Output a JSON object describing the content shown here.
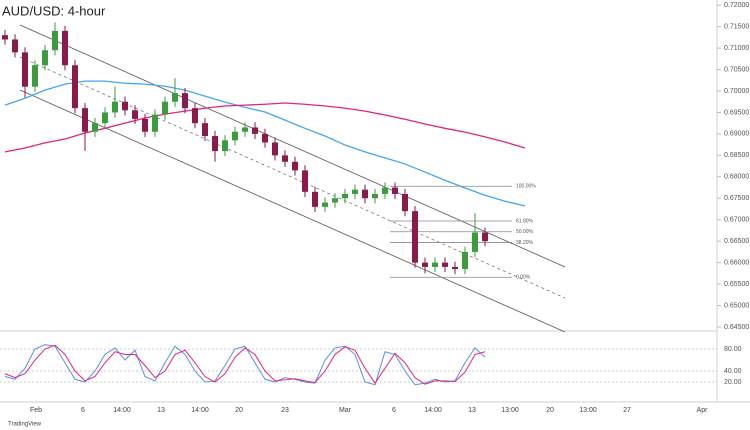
{
  "chart_data": {
    "type": "candlestick",
    "title": "AUD/USD: 4-hour",
    "up_color": "#3d9b3d",
    "down_color": "#8b1a4a",
    "candles": {
      "open": [
        0.713,
        0.712,
        0.709,
        0.701,
        0.706,
        0.7095,
        0.714,
        0.706,
        0.696,
        0.6905,
        0.6925,
        0.695,
        0.6975,
        0.6955,
        0.6935,
        0.6905,
        0.6945,
        0.6975,
        0.6995,
        0.696,
        0.6925,
        0.6895,
        0.686,
        0.6885,
        0.6905,
        0.6915,
        0.69,
        0.688,
        0.685,
        0.6835,
        0.6815,
        0.6765,
        0.673,
        0.674,
        0.675,
        0.676,
        0.677,
        0.675,
        0.676,
        0.6775,
        0.676,
        0.672,
        0.66,
        0.659,
        0.66,
        0.659,
        0.6585,
        0.6625,
        0.667
      ],
      "high": [
        0.7142,
        0.7132,
        0.7102,
        0.7072,
        0.7107,
        0.716,
        0.7152,
        0.7072,
        0.6972,
        0.6937,
        0.6962,
        0.701,
        0.6987,
        0.6967,
        0.6947,
        0.6957,
        0.6987,
        0.703,
        0.7007,
        0.6972,
        0.6937,
        0.6907,
        0.6897,
        0.6917,
        0.6927,
        0.6927,
        0.6912,
        0.6892,
        0.6862,
        0.6847,
        0.6827,
        0.6777,
        0.6752,
        0.6762,
        0.6772,
        0.6782,
        0.6782,
        0.6772,
        0.6787,
        0.6787,
        0.6772,
        0.6732,
        0.6612,
        0.6612,
        0.6612,
        0.6602,
        0.6637,
        0.6715,
        0.6682
      ],
      "low": [
        0.7108,
        0.7078,
        0.6985,
        0.6998,
        0.7048,
        0.7083,
        0.7048,
        0.6948,
        0.686,
        0.6893,
        0.6913,
        0.6938,
        0.6943,
        0.6923,
        0.6893,
        0.6893,
        0.6933,
        0.6963,
        0.6948,
        0.6913,
        0.6883,
        0.6835,
        0.6848,
        0.6873,
        0.6893,
        0.6888,
        0.6868,
        0.6838,
        0.6823,
        0.6803,
        0.6753,
        0.6718,
        0.6718,
        0.6728,
        0.6738,
        0.6748,
        0.6738,
        0.6738,
        0.6748,
        0.6748,
        0.6708,
        0.6588,
        0.6575,
        0.6578,
        0.6578,
        0.6573,
        0.6573,
        0.6613,
        0.6638
      ],
      "close": [
        0.712,
        0.709,
        0.701,
        0.706,
        0.7095,
        0.714,
        0.706,
        0.696,
        0.6905,
        0.6925,
        0.695,
        0.6975,
        0.6955,
        0.6935,
        0.6905,
        0.6945,
        0.6975,
        0.6995,
        0.696,
        0.6925,
        0.6895,
        0.686,
        0.6885,
        0.6905,
        0.6915,
        0.69,
        0.688,
        0.685,
        0.6835,
        0.6815,
        0.6765,
        0.673,
        0.674,
        0.675,
        0.676,
        0.677,
        0.675,
        0.676,
        0.6775,
        0.676,
        0.672,
        0.66,
        0.659,
        0.66,
        0.659,
        0.6585,
        0.6625,
        0.667,
        0.665
      ]
    },
    "moving_averages": [
      {
        "color": "#42a5f5",
        "values": [
          0.6967,
          0.6983,
          0.7002,
          0.7016,
          0.7023,
          0.7023,
          0.7018,
          0.7016,
          0.7011,
          0.7002,
          0.6988,
          0.6974,
          0.6962,
          0.6951,
          0.6932,
          0.6913,
          0.6895,
          0.6874,
          0.6858,
          0.6844,
          0.683,
          0.6811,
          0.6792,
          0.6774,
          0.6757,
          0.6743,
          0.6732
        ]
      },
      {
        "color": "#e0267a",
        "values": [
          0.6858,
          0.6867,
          0.6879,
          0.6888,
          0.6902,
          0.6913,
          0.6925,
          0.6937,
          0.6946,
          0.6953,
          0.696,
          0.6965,
          0.6967,
          0.6969,
          0.6972,
          0.6969,
          0.6965,
          0.696,
          0.6953,
          0.6944,
          0.6934,
          0.6923,
          0.6913,
          0.6904,
          0.6893,
          0.6881,
          0.6867
        ]
      }
    ],
    "fib": {
      "color": "#888888",
      "levels": [
        {
          "label": "100.00%",
          "price": 0.6778
        },
        {
          "label": "61.80%",
          "price": 0.6697
        },
        {
          "label": "50.00%",
          "price": 0.6672
        },
        {
          "label": "38.20%",
          "price": 0.6647
        },
        {
          "label": "0.00%",
          "price": 0.6566
        }
      ]
    },
    "ylim": [
      0.6443,
      0.7212
    ],
    "yticks": [
      {
        "value": 0.72,
        "label": "0.72000"
      },
      {
        "value": 0.715,
        "label": "0.71500"
      },
      {
        "value": 0.71,
        "label": "0.71000"
      },
      {
        "value": 0.705,
        "label": "0.70500"
      },
      {
        "value": 0.7,
        "label": "0.70000"
      },
      {
        "value": 0.695,
        "label": "0.69500"
      },
      {
        "value": 0.69,
        "label": "0.69000"
      },
      {
        "value": 0.685,
        "label": "0.68500"
      },
      {
        "value": 0.68,
        "label": "0.68000"
      },
      {
        "value": 0.675,
        "label": "0.67500"
      },
      {
        "value": 0.67,
        "label": "0.67000"
      },
      {
        "value": 0.665,
        "label": "0.66500"
      },
      {
        "value": 0.66,
        "label": "0.66000"
      },
      {
        "value": 0.655,
        "label": "0.65500"
      },
      {
        "value": 0.65,
        "label": "0.65000"
      },
      {
        "value": 0.645,
        "label": "0.64500"
      }
    ],
    "time_labels": [
      "Feb",
      "6",
      "14:00",
      "13",
      "14:00",
      "20",
      "23",
      "Mar",
      "6",
      "14:00",
      "13",
      "13:00",
      "20",
      "13:00",
      "27",
      "Apr"
    ],
    "oscillator": {
      "ylim": [
        -12.7,
        109.1
      ],
      "yticks": [
        {
          "value": 80,
          "label": "80.00"
        },
        {
          "value": 40,
          "label": "40.00"
        },
        {
          "value": 20,
          "label": "20.00"
        }
      ],
      "series": [
        {
          "color": "#5b8def",
          "values": [
            30,
            25,
            45,
            80,
            88,
            85,
            55,
            25,
            20,
            40,
            70,
            82,
            60,
            78,
            30,
            22,
            55,
            85,
            70,
            40,
            20,
            22,
            50,
            80,
            85,
            55,
            25,
            20,
            28,
            25,
            20,
            18,
            60,
            82,
            85,
            70,
            20,
            15,
            75,
            70,
            40,
            15,
            18,
            25,
            20,
            22,
            55,
            82,
            65
          ]
        },
        {
          "color": "#e0267a",
          "values": [
            35,
            28,
            35,
            60,
            80,
            87,
            70,
            40,
            22,
            30,
            55,
            75,
            70,
            70,
            50,
            28,
            40,
            70,
            78,
            55,
            30,
            20,
            35,
            65,
            82,
            70,
            40,
            22,
            24,
            26,
            22,
            19,
            40,
            70,
            84,
            78,
            45,
            18,
            45,
            72,
            55,
            28,
            16,
            22,
            22,
            21,
            38,
            70,
            75
          ]
        }
      ]
    }
  },
  "watermark": "TradingView"
}
